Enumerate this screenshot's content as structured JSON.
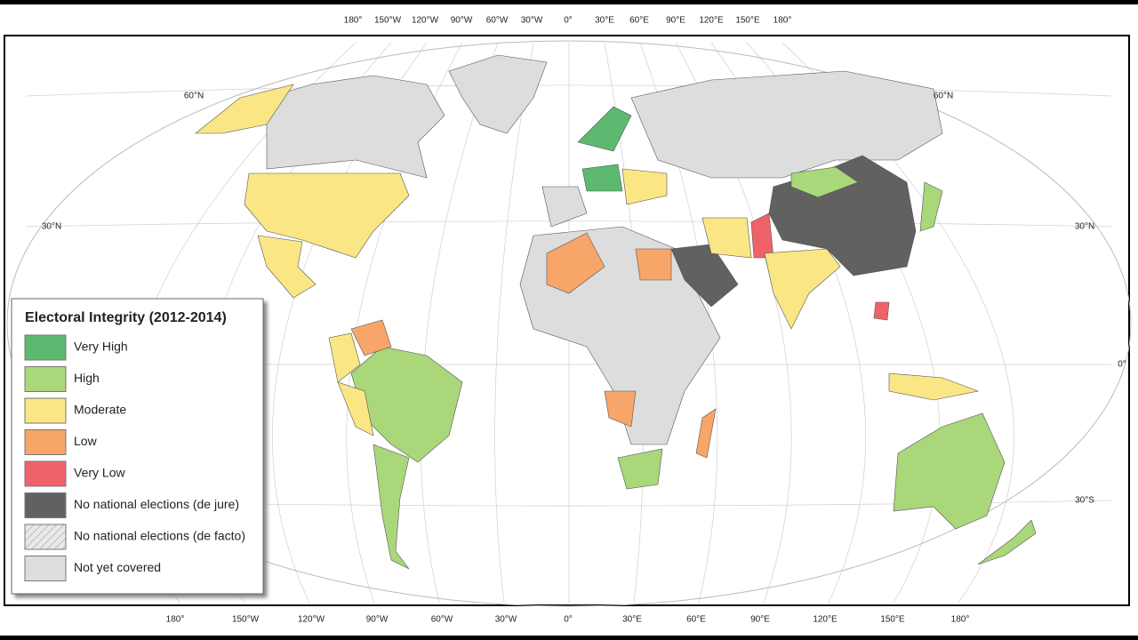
{
  "legend": {
    "title": "Electoral Integrity (2012-2014)",
    "items": [
      {
        "label": "Very High",
        "color": "#5cb96f"
      },
      {
        "label": "High",
        "color": "#a9d77a"
      },
      {
        "label": "Moderate",
        "color": "#fbe685"
      },
      {
        "label": "Low",
        "color": "#f7a568"
      },
      {
        "label": "Very Low",
        "color": "#f0626a"
      },
      {
        "label": "No national elections (de jure)",
        "color": "#616161"
      },
      {
        "label": "No national elections (de facto)",
        "color": "hatch"
      },
      {
        "label": "Not yet covered",
        "color": "#dddddd"
      }
    ]
  },
  "graticule": {
    "top_labels": [
      "180°",
      "150°W",
      "120°W",
      "90°W",
      "60°W",
      "30°W",
      "0°",
      "30°E",
      "60°E",
      "90°E",
      "120°E",
      "150°E",
      "180°"
    ],
    "bottom_labels": [
      "180°",
      "150°W",
      "120°W",
      "90°W",
      "60°W",
      "30°W",
      "0°",
      "30°E",
      "60°E",
      "90°E",
      "120°E",
      "150°E",
      "180°"
    ],
    "left_labels": [
      "60°N",
      "30°N"
    ],
    "right_labels": [
      "60°N",
      "30°N",
      "0°",
      "30°S"
    ]
  }
}
